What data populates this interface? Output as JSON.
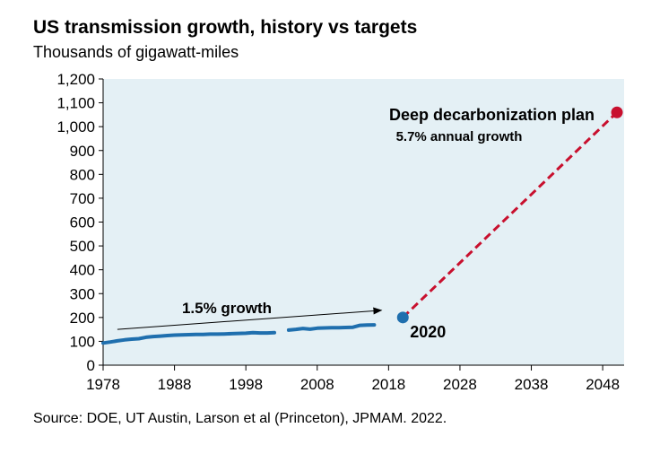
{
  "title": "US transmission growth, history vs targets",
  "subtitle": "Thousands of gigawatt-miles",
  "source": "Source: DOE, UT Austin, Larson et al (Princeton), JPMAM. 2022.",
  "colors": {
    "plot_background": "#e4f0f5",
    "history_line": "#1f6fae",
    "point_2020": "#1f6fae",
    "plan": "#c8102e",
    "text": "#000000"
  },
  "chart_data": {
    "type": "line",
    "xlim": [
      1978,
      2051
    ],
    "ylim": [
      0,
      1200
    ],
    "xticks": [
      1978,
      1988,
      1998,
      2008,
      2018,
      2028,
      2038,
      2048
    ],
    "yticks": [
      0,
      100,
      200,
      300,
      400,
      500,
      600,
      700,
      800,
      900,
      1000,
      1100,
      1200
    ],
    "grid": false,
    "series": [
      {
        "kind": "history",
        "segments": [
          [
            [
              1978,
              93
            ],
            [
              1979,
              97
            ],
            [
              1980,
              102
            ],
            [
              1981,
              106
            ],
            [
              1982,
              109
            ],
            [
              1983,
              111
            ],
            [
              1984,
              117
            ],
            [
              1985,
              120
            ],
            [
              1986,
              122
            ],
            [
              1987,
              124
            ],
            [
              1988,
              126
            ],
            [
              1989,
              127
            ],
            [
              1990,
              128
            ],
            [
              1991,
              129
            ],
            [
              1992,
              129
            ],
            [
              1993,
              130
            ],
            [
              1994,
              130
            ],
            [
              1995,
              131
            ],
            [
              1996,
              132
            ],
            [
              1997,
              133
            ],
            [
              1998,
              134
            ],
            [
              1999,
              136
            ],
            [
              2000,
              135
            ],
            [
              2001,
              135
            ],
            [
              2002,
              136
            ]
          ],
          [
            [
              2004,
              147
            ],
            [
              2005,
              150
            ],
            [
              2006,
              154
            ],
            [
              2007,
              151
            ],
            [
              2008,
              155
            ],
            [
              2009,
              156
            ],
            [
              2010,
              157
            ],
            [
              2011,
              157
            ],
            [
              2012,
              158
            ],
            [
              2013,
              159
            ],
            [
              2014,
              167
            ],
            [
              2015,
              168
            ],
            [
              2016,
              169
            ]
          ]
        ]
      },
      {
        "kind": "plan",
        "style": "dashed",
        "points": [
          [
            2020,
            200
          ],
          [
            2050,
            1060
          ]
        ]
      }
    ],
    "points": [
      {
        "label": "2020",
        "x": 2020,
        "y": 200
      },
      {
        "label": "",
        "x": 2050,
        "y": 1060
      }
    ],
    "annotations": {
      "growth_label": "1.5% growth",
      "growth_arrow": {
        "from": [
          1980,
          150
        ],
        "to": [
          2017,
          230
        ]
      },
      "plan_label": "Deep decarbonization plan",
      "plan_sublabel": "5.7% annual growth"
    }
  }
}
